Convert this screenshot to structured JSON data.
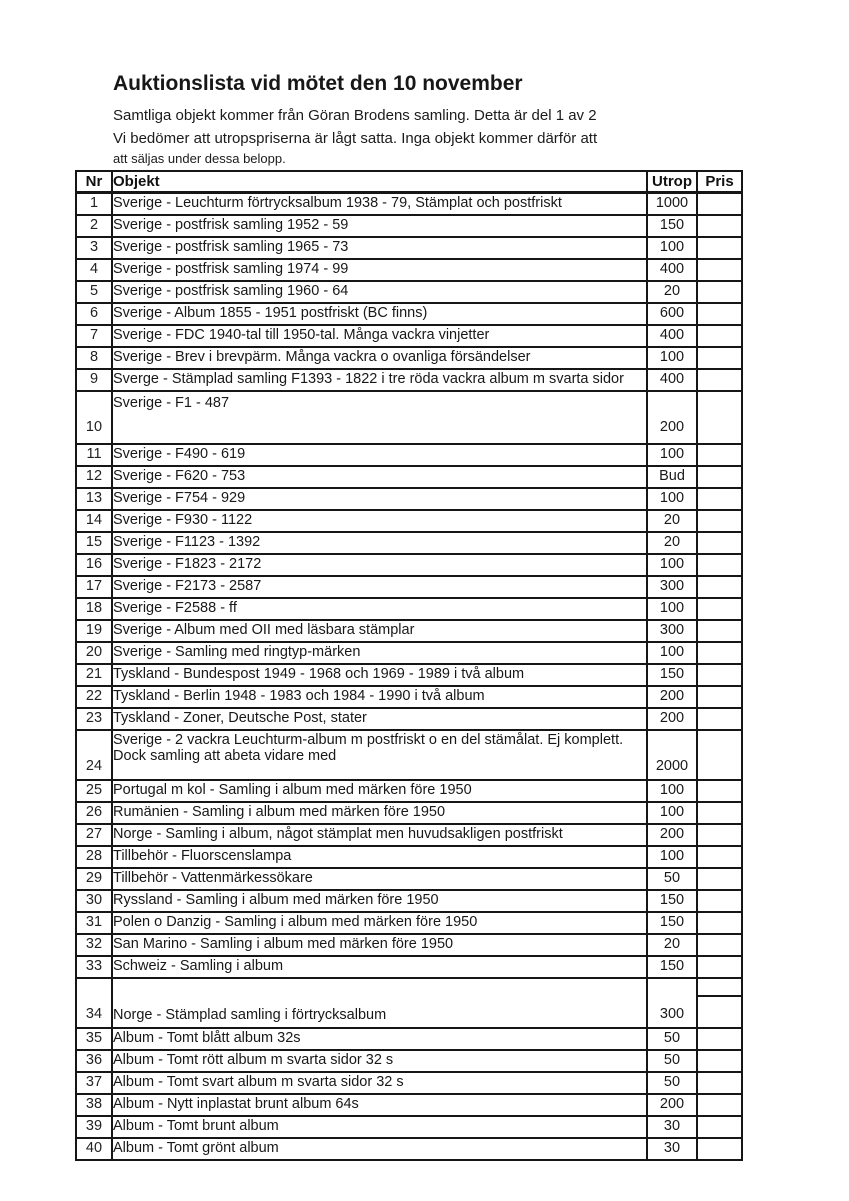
{
  "header": {
    "title": "Auktionslista vid mötet den 10 november",
    "intro_lines": [
      "Samtliga objekt kommer från Göran Brodens samling. Detta är del 1 av 2",
      "Vi bedömer att utropspriserna är lågt satta. Inga objekt kommer därför att",
      "att säljas under dessa belopp."
    ]
  },
  "table": {
    "columns": [
      "Nr",
      "Objekt",
      "Utrop",
      "Pris"
    ],
    "rows": [
      {
        "nr": "1",
        "objekt": "Sverige - Leuchturm förtrycksalbum 1938 - 79, Stämplat och postfriskt",
        "utrop": "1000",
        "pris": "",
        "variant": ""
      },
      {
        "nr": "2",
        "objekt": "Sverige - postfrisk samling 1952 - 59",
        "utrop": "150",
        "pris": "",
        "variant": ""
      },
      {
        "nr": "3",
        "objekt": "Sverige - postfrisk samling 1965 - 73",
        "utrop": "100",
        "pris": "",
        "variant": ""
      },
      {
        "nr": "4",
        "objekt": "Sverige - postfrisk samling 1974 - 99",
        "utrop": "400",
        "pris": "",
        "variant": ""
      },
      {
        "nr": "5",
        "objekt": "Sverige - postfrisk samling 1960 - 64",
        "utrop": "20",
        "pris": "",
        "variant": ""
      },
      {
        "nr": "6",
        "objekt": "Sverige - Album 1855 - 1951 postfriskt (BC finns)",
        "utrop": "600",
        "pris": "",
        "variant": ""
      },
      {
        "nr": "7",
        "objekt": "Sverige - FDC 1940-tal till 1950-tal. Många vackra vinjetter",
        "utrop": "400",
        "pris": "",
        "variant": ""
      },
      {
        "nr": "8",
        "objekt": "Sverige - Brev i brevpärm. Många vackra o ovanliga försändelser",
        "utrop": "100",
        "pris": "",
        "variant": ""
      },
      {
        "nr": "9",
        "objekt": "Sverge - Stämplad samling F1393 - 1822 i tre röda vackra album m svarta sidor",
        "utrop": "400",
        "pris": "",
        "variant": ""
      },
      {
        "nr": "10",
        "objekt": "Sverige - F1 - 487",
        "utrop": "200",
        "pris": "",
        "variant": "tall-top"
      },
      {
        "nr": "11",
        "objekt": "Sverige - F490 - 619",
        "utrop": "100",
        "pris": "",
        "variant": ""
      },
      {
        "nr": "12",
        "objekt": "Sverige - F620 - 753",
        "utrop": "Bud",
        "pris": "",
        "variant": ""
      },
      {
        "nr": "13",
        "objekt": "Sverige - F754 - 929",
        "utrop": "100",
        "pris": "",
        "variant": ""
      },
      {
        "nr": "14",
        "objekt": "Sverige - F930 - 1122",
        "utrop": "20",
        "pris": "",
        "variant": ""
      },
      {
        "nr": "15",
        "objekt": "Sverige - F1123 - 1392",
        "utrop": "20",
        "pris": "",
        "variant": ""
      },
      {
        "nr": "16",
        "objekt": "Sverige - F1823 - 2172",
        "utrop": "100",
        "pris": "",
        "variant": ""
      },
      {
        "nr": "17",
        "objekt": "Sverige - F2173 - 2587",
        "utrop": "300",
        "pris": "",
        "variant": ""
      },
      {
        "nr": "18",
        "objekt": "Sverige - F2588 - ff",
        "utrop": "100",
        "pris": "",
        "variant": ""
      },
      {
        "nr": "19",
        "objekt": "Sverige - Album med OII med läsbara stämplar",
        "utrop": "300",
        "pris": "",
        "variant": ""
      },
      {
        "nr": "20",
        "objekt": "Sverige - Samling med ringtyp-märken",
        "utrop": "100",
        "pris": "",
        "variant": ""
      },
      {
        "nr": "21",
        "objekt": "Tyskland - Bundespost 1949 - 1968 och 1969 - 1989 i två album",
        "utrop": "150",
        "pris": "",
        "variant": ""
      },
      {
        "nr": "22",
        "objekt": "Tyskland - Berlin 1948 - 1983 och 1984 - 1990 i två album",
        "utrop": "200",
        "pris": "",
        "variant": ""
      },
      {
        "nr": "23",
        "objekt": "Tyskland - Zoner, Deutsche Post, stater",
        "utrop": "200",
        "pris": "",
        "variant": ""
      },
      {
        "nr": "24",
        "objekt": "Sverige - 2 vackra Leuchturm-album m postfriskt o en del stämålat. Ej komplett. Dock samling att abeta vidare med",
        "utrop": "2000",
        "pris": "",
        "variant": "two-line"
      },
      {
        "nr": "25",
        "objekt": "Portugal m kol - Samling i album med märken före 1950",
        "utrop": "100",
        "pris": "",
        "variant": ""
      },
      {
        "nr": "26",
        "objekt": "Rumänien - Samling i album med märken före 1950",
        "utrop": "100",
        "pris": "",
        "variant": ""
      },
      {
        "nr": "27",
        "objekt": "Norge - Samling i album, något stämplat men huvudsakligen postfriskt",
        "utrop": "200",
        "pris": "",
        "variant": ""
      },
      {
        "nr": "28",
        "objekt": "Tillbehör - Fluorscenslampa",
        "utrop": "100",
        "pris": "",
        "variant": ""
      },
      {
        "nr": "29",
        "objekt": "Tillbehör - Vattenmärkessökare",
        "utrop": "50",
        "pris": "",
        "variant": ""
      },
      {
        "nr": "30",
        "objekt": "Ryssland - Samling i album med märken före 1950",
        "utrop": "150",
        "pris": "",
        "variant": ""
      },
      {
        "nr": "31",
        "objekt": "Polen o Danzig - Samling i album med märken före 1950",
        "utrop": "150",
        "pris": "",
        "variant": ""
      },
      {
        "nr": "32",
        "objekt": "San Marino - Samling i album med märken före 1950",
        "utrop": "20",
        "pris": "",
        "variant": ""
      },
      {
        "nr": "33",
        "objekt": "Schweiz - Samling i album",
        "utrop": "150",
        "pris": "",
        "variant": ""
      },
      {
        "nr": "34",
        "objekt": "Norge - Stämplad samling i förtrycksalbum",
        "utrop": "300",
        "pris": "",
        "variant": "tall-bottom"
      },
      {
        "nr": "35",
        "objekt": "Album - Tomt blått album 32s",
        "utrop": "50",
        "pris": "",
        "variant": ""
      },
      {
        "nr": "36",
        "objekt": "Album - Tomt rött album m svarta sidor 32 s",
        "utrop": "50",
        "pris": "",
        "variant": ""
      },
      {
        "nr": "37",
        "objekt": "Album - Tomt svart album m svarta sidor 32 s",
        "utrop": "50",
        "pris": "",
        "variant": ""
      },
      {
        "nr": "38",
        "objekt": "Album - Nytt inplastat brunt album 64s",
        "utrop": "200",
        "pris": "",
        "variant": ""
      },
      {
        "nr": "39",
        "objekt": "Album - Tomt brunt album",
        "utrop": "30",
        "pris": "",
        "variant": ""
      },
      {
        "nr": "40",
        "objekt": "Album - Tomt grönt album",
        "utrop": "30",
        "pris": "",
        "variant": ""
      }
    ]
  }
}
